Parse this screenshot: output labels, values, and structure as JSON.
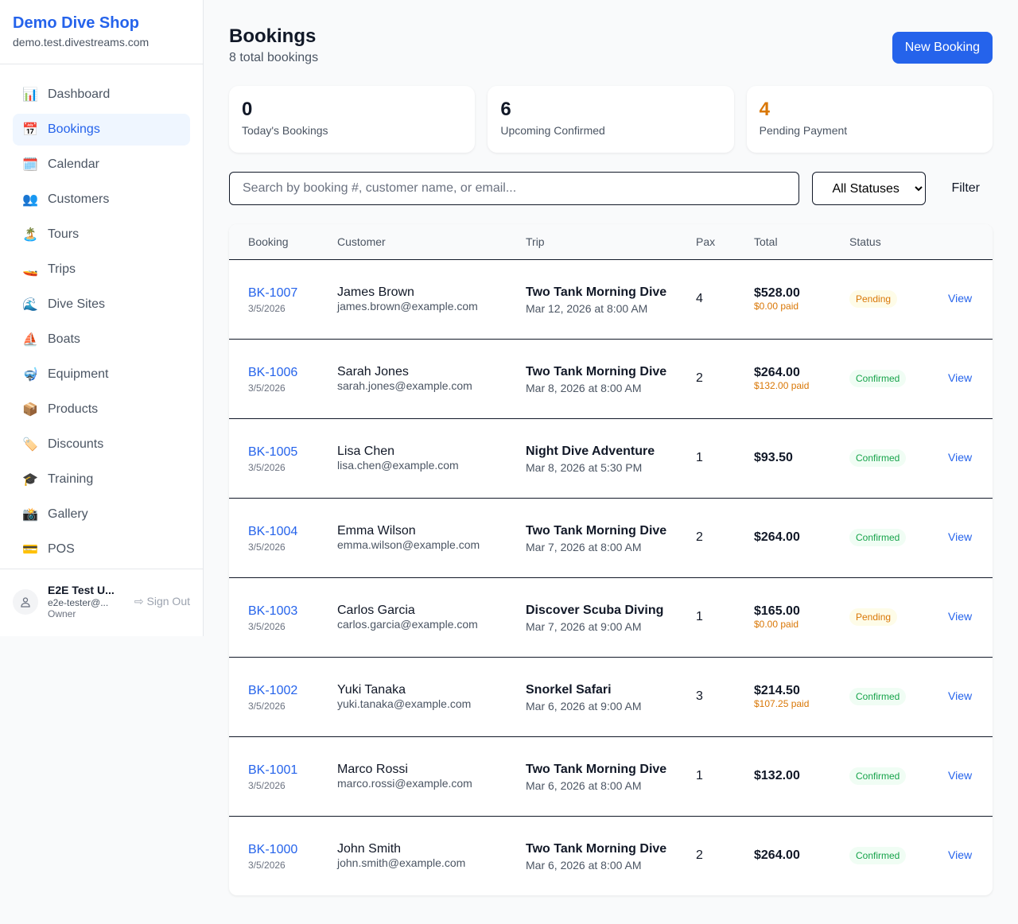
{
  "sidebar": {
    "brand": "Demo Dive Shop",
    "domain": "demo.test.divestreams.com",
    "items": [
      {
        "label": "Dashboard",
        "icon": "📊",
        "icon_name": "bar-chart-icon",
        "active": false
      },
      {
        "label": "Bookings",
        "icon": "📅",
        "icon_name": "calendar-icon",
        "active": true
      },
      {
        "label": "Calendar",
        "icon": "🗓️",
        "icon_name": "spiral-calendar-icon",
        "active": false
      },
      {
        "label": "Customers",
        "icon": "👥",
        "icon_name": "users-icon",
        "active": false
      },
      {
        "label": "Tours",
        "icon": "🏝️",
        "icon_name": "island-icon",
        "active": false
      },
      {
        "label": "Trips",
        "icon": "🚤",
        "icon_name": "boat-icon",
        "active": false
      },
      {
        "label": "Dive Sites",
        "icon": "🌊",
        "icon_name": "wave-icon",
        "active": false
      },
      {
        "label": "Boats",
        "icon": "⛵",
        "icon_name": "sailboat-icon",
        "active": false
      },
      {
        "label": "Equipment",
        "icon": "🤿",
        "icon_name": "diving-mask-icon",
        "active": false
      },
      {
        "label": "Products",
        "icon": "📦",
        "icon_name": "package-icon",
        "active": false
      },
      {
        "label": "Discounts",
        "icon": "🏷️",
        "icon_name": "tag-icon",
        "active": false
      },
      {
        "label": "Training",
        "icon": "🎓",
        "icon_name": "graduation-cap-icon",
        "active": false
      },
      {
        "label": "Gallery",
        "icon": "📸",
        "icon_name": "camera-icon",
        "active": false
      },
      {
        "label": "POS",
        "icon": "💳",
        "icon_name": "credit-card-icon",
        "active": false
      }
    ],
    "user": {
      "name": "E2E Test U...",
      "email": "e2e-tester@...",
      "role": "Owner",
      "sign_out": "Sign Out"
    }
  },
  "header": {
    "title": "Bookings",
    "subtitle": "8 total bookings",
    "new_booking": "New Booking"
  },
  "stats": [
    {
      "value": "0",
      "label": "Today's Bookings",
      "color": "#111827"
    },
    {
      "value": "6",
      "label": "Upcoming Confirmed",
      "color": "#111827"
    },
    {
      "value": "4",
      "label": "Pending Payment",
      "color": "#d97706"
    }
  ],
  "filters": {
    "search_placeholder": "Search by booking #, customer name, or email...",
    "status_selected": "All Statuses",
    "filter_label": "Filter"
  },
  "table": {
    "headers": [
      "Booking",
      "Customer",
      "Trip",
      "Pax",
      "Total",
      "Status",
      ""
    ],
    "rows": [
      {
        "id": "BK-1007",
        "date": "3/5/2026",
        "name": "James Brown",
        "email": "james.brown@example.com",
        "trip": "Two Tank Morning Dive",
        "trip_date": "Mar 12, 2026 at 8:00 AM",
        "pax": "4",
        "total": "$528.00",
        "paid": "$0.00 paid",
        "status": "Pending",
        "action": "View"
      },
      {
        "id": "BK-1006",
        "date": "3/5/2026",
        "name": "Sarah Jones",
        "email": "sarah.jones@example.com",
        "trip": "Two Tank Morning Dive",
        "trip_date": "Mar 8, 2026 at 8:00 AM",
        "pax": "2",
        "total": "$264.00",
        "paid": "$132.00 paid",
        "status": "Confirmed",
        "action": "View"
      },
      {
        "id": "BK-1005",
        "date": "3/5/2026",
        "name": "Lisa Chen",
        "email": "lisa.chen@example.com",
        "trip": "Night Dive Adventure",
        "trip_date": "Mar 8, 2026 at 5:30 PM",
        "pax": "1",
        "total": "$93.50",
        "paid": null,
        "status": "Confirmed",
        "action": "View"
      },
      {
        "id": "BK-1004",
        "date": "3/5/2026",
        "name": "Emma Wilson",
        "email": "emma.wilson@example.com",
        "trip": "Two Tank Morning Dive",
        "trip_date": "Mar 7, 2026 at 8:00 AM",
        "pax": "2",
        "total": "$264.00",
        "paid": null,
        "status": "Confirmed",
        "action": "View"
      },
      {
        "id": "BK-1003",
        "date": "3/5/2026",
        "name": "Carlos Garcia",
        "email": "carlos.garcia@example.com",
        "trip": "Discover Scuba Diving",
        "trip_date": "Mar 7, 2026 at 9:00 AM",
        "pax": "1",
        "total": "$165.00",
        "paid": "$0.00 paid",
        "status": "Pending",
        "action": "View"
      },
      {
        "id": "BK-1002",
        "date": "3/5/2026",
        "name": "Yuki Tanaka",
        "email": "yuki.tanaka@example.com",
        "trip": "Snorkel Safari",
        "trip_date": "Mar 6, 2026 at 9:00 AM",
        "pax": "3",
        "total": "$214.50",
        "paid": "$107.25 paid",
        "status": "Confirmed",
        "action": "View"
      },
      {
        "id": "BK-1001",
        "date": "3/5/2026",
        "name": "Marco Rossi",
        "email": "marco.rossi@example.com",
        "trip": "Two Tank Morning Dive",
        "trip_date": "Mar 6, 2026 at 8:00 AM",
        "pax": "1",
        "total": "$132.00",
        "paid": null,
        "status": "Confirmed",
        "action": "View"
      },
      {
        "id": "BK-1000",
        "date": "3/5/2026",
        "name": "John Smith",
        "email": "john.smith@example.com",
        "trip": "Two Tank Morning Dive",
        "trip_date": "Mar 6, 2026 at 8:00 AM",
        "pax": "2",
        "total": "$264.00",
        "paid": null,
        "status": "Confirmed",
        "action": "View"
      }
    ]
  }
}
